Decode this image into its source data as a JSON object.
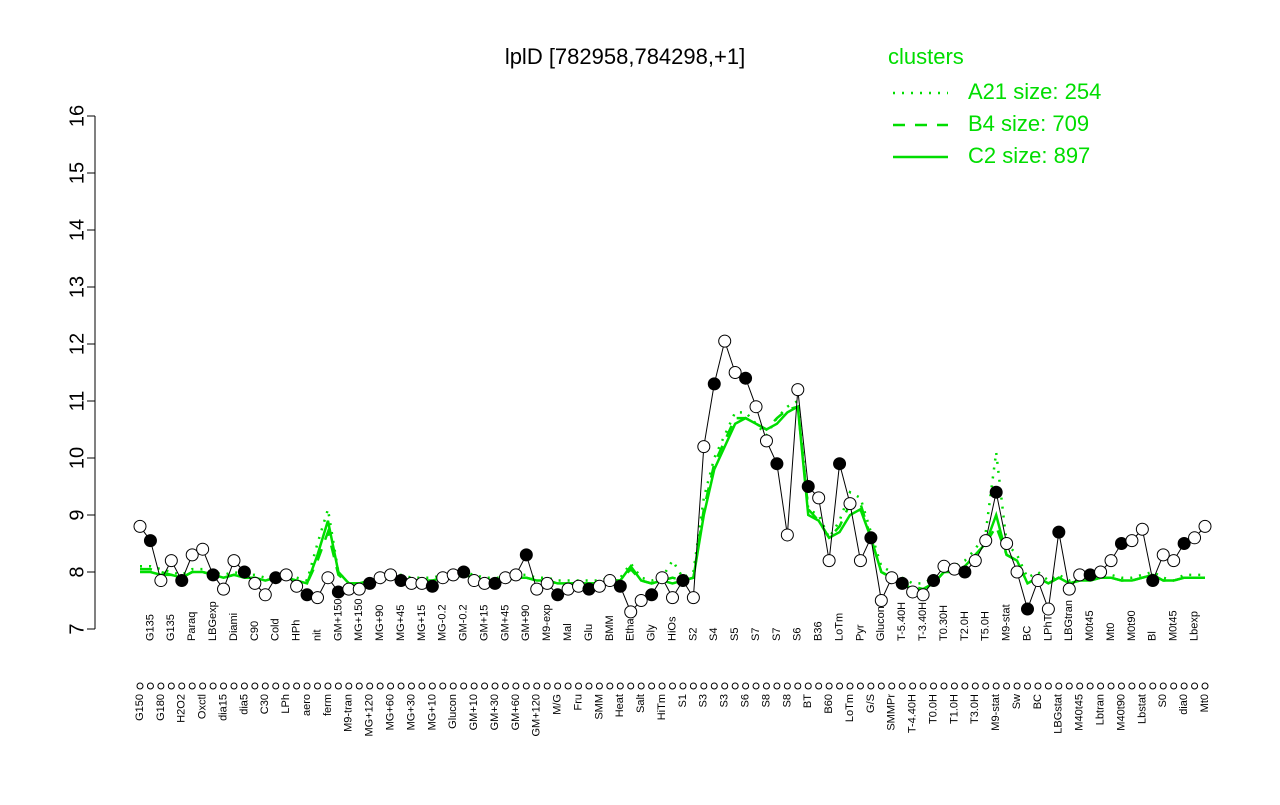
{
  "chart_data": {
    "type": "line",
    "title": "lplD [782958,784298,+1]",
    "legend_title": "clusters",
    "legend": "top-right",
    "ylim": [
      7,
      16
    ],
    "yticks": [
      7,
      8,
      9,
      10,
      11,
      12,
      13,
      14,
      15,
      16
    ],
    "categories": [
      "G150",
      "G135",
      "G180",
      "G135",
      "H2O2",
      "Paraq",
      "Oxctl",
      "LBGexp",
      "dia15",
      "Diami",
      "dia5",
      "C90",
      "C30",
      "Cold",
      "LPh",
      "HPh",
      "aero",
      "nit",
      "ferm",
      "GM+150",
      "M9-tran",
      "MG+150",
      "MG+120",
      "MG+90",
      "MG+60",
      "MG+45",
      "MG+30",
      "MG+15",
      "MG+10",
      "MG-0.2",
      "Glucon",
      "GM-0.2",
      "GM+10",
      "GM+15",
      "GM+30",
      "GM+45",
      "GM+60",
      "GM+90",
      "GM+120",
      "M9-exp",
      "M/G",
      "Mal",
      "Fru",
      "Glu",
      "SMM",
      "BMM",
      "Heat",
      "Etha",
      "Salt",
      "Gly",
      "HiTm",
      "HiOs",
      "S1",
      "S2",
      "S3",
      "S4",
      "S3",
      "S5",
      "S6",
      "S7",
      "S8",
      "S7",
      "S8",
      "S6",
      "BT",
      "B36",
      "B60",
      "LoTm",
      "LoTm",
      "Pyr",
      "G/S",
      "Glucon",
      "SMMPr",
      "T-5.40H",
      "T-4.40H",
      "T-3.40H",
      "T0.0H",
      "T0.30H",
      "T1.0H",
      "T2.0H",
      "T3.0H",
      "T5.0H",
      "M9-stat",
      "M9-stat",
      "Sw",
      "BC",
      "BC",
      "LPhT",
      "LBGstat",
      "LBGtran",
      "M40t45",
      "M0t45",
      "Lbtran",
      "Mt0",
      "M40t90",
      "M0t90",
      "Lbstat",
      "Bl",
      "S0",
      "M0t45",
      "dia0",
      "Lbexp",
      "Mt0"
    ],
    "values": [
      8.8,
      8.55,
      7.85,
      8.2,
      7.85,
      8.3,
      8.4,
      7.95,
      7.7,
      8.2,
      8.0,
      7.8,
      7.6,
      7.9,
      7.95,
      7.75,
      7.6,
      7.55,
      7.9,
      7.65,
      7.7,
      7.7,
      7.8,
      7.9,
      7.95,
      7.85,
      7.8,
      7.8,
      7.75,
      7.9,
      7.95,
      8.0,
      7.85,
      7.8,
      7.8,
      7.9,
      7.95,
      8.3,
      7.7,
      7.8,
      7.6,
      7.7,
      7.75,
      7.7,
      7.75,
      7.85,
      7.75,
      7.3,
      7.5,
      7.6,
      7.9,
      7.55,
      7.85,
      7.55,
      10.2,
      11.3,
      12.05,
      11.5,
      11.4,
      10.9,
      10.3,
      9.9,
      8.65,
      11.2,
      9.5,
      9.3,
      8.2,
      9.9,
      9.2,
      8.2,
      8.6,
      7.5,
      7.9,
      7.8,
      7.65,
      7.6,
      7.85,
      8.1,
      8.05,
      8.0,
      8.2,
      8.55,
      9.4,
      8.5,
      8.0,
      7.35,
      7.85,
      7.35,
      8.7,
      7.7,
      7.95,
      7.95,
      8.0,
      8.2,
      8.5,
      8.55,
      8.75,
      7.85,
      8.3,
      8.2,
      8.5,
      8.6,
      8.8
    ],
    "color": "#000000",
    "series": [
      {
        "name": "A21 size: 254",
        "color": "#00dd00",
        "dash": "dotted",
        "values": [
          8.1,
          8.1,
          8.05,
          8.0,
          7.95,
          8.05,
          8.05,
          8.0,
          7.95,
          8.0,
          7.95,
          7.95,
          7.9,
          7.95,
          7.95,
          7.9,
          7.85,
          8.5,
          9.1,
          8.0,
          7.8,
          7.8,
          7.85,
          7.9,
          7.95,
          7.95,
          7.9,
          7.9,
          7.9,
          7.95,
          7.95,
          8.0,
          7.95,
          7.9,
          7.9,
          7.9,
          7.95,
          7.95,
          7.9,
          7.9,
          7.85,
          7.85,
          7.85,
          7.85,
          7.85,
          7.9,
          7.9,
          8.15,
          7.9,
          7.85,
          7.9,
          8.2,
          7.9,
          8.0,
          9.3,
          10.0,
          10.4,
          10.8,
          10.8,
          10.6,
          10.4,
          10.7,
          10.9,
          11.0,
          9.1,
          9.0,
          8.6,
          8.9,
          9.4,
          9.3,
          8.7,
          8.1,
          8.0,
          7.9,
          7.8,
          7.8,
          7.9,
          8.1,
          8.1,
          8.2,
          8.4,
          8.7,
          10.1,
          8.5,
          8.3,
          7.9,
          8.0,
          7.85,
          7.95,
          7.85,
          7.9,
          7.9,
          7.95,
          7.95,
          7.9,
          7.9,
          7.95,
          8.0,
          7.9,
          7.85,
          7.95,
          7.95,
          7.95
        ]
      },
      {
        "name": "B4 size: 709",
        "color": "#00dd00",
        "dash": "dashed",
        "values": [
          8.05,
          8.05,
          8.0,
          7.95,
          7.9,
          8.0,
          8.0,
          7.95,
          7.9,
          7.95,
          7.9,
          7.9,
          7.85,
          7.9,
          7.9,
          7.85,
          7.8,
          8.2,
          8.7,
          7.95,
          7.8,
          7.8,
          7.85,
          7.85,
          7.9,
          7.9,
          7.85,
          7.85,
          7.85,
          7.9,
          7.9,
          7.95,
          7.9,
          7.85,
          7.85,
          7.85,
          7.9,
          7.9,
          7.85,
          7.85,
          7.8,
          7.8,
          7.8,
          7.8,
          7.8,
          7.85,
          7.85,
          8.05,
          7.85,
          7.8,
          7.85,
          7.9,
          7.85,
          7.9,
          9.1,
          9.9,
          10.3,
          10.7,
          10.7,
          10.6,
          10.5,
          10.7,
          10.85,
          10.9,
          9.1,
          8.9,
          8.6,
          8.8,
          9.2,
          9.2,
          8.6,
          8.0,
          7.9,
          7.8,
          7.75,
          7.7,
          7.8,
          8.0,
          8.0,
          8.1,
          8.3,
          8.5,
          8.8,
          8.3,
          8.2,
          7.8,
          7.9,
          7.8,
          7.9,
          7.8,
          7.85,
          7.85,
          7.9,
          7.9,
          7.85,
          7.85,
          7.9,
          7.95,
          7.85,
          7.85,
          7.9,
          7.9,
          7.9
        ]
      },
      {
        "name": "C2 size: 897",
        "color": "#00dd00",
        "dash": "solid",
        "values": [
          8.0,
          8.0,
          7.95,
          7.95,
          7.9,
          8.0,
          8.0,
          7.95,
          7.9,
          7.95,
          7.9,
          7.9,
          7.85,
          7.9,
          7.9,
          7.85,
          7.8,
          8.3,
          8.9,
          8.0,
          7.8,
          7.8,
          7.85,
          7.85,
          7.9,
          7.9,
          7.85,
          7.85,
          7.85,
          7.9,
          7.9,
          7.95,
          7.9,
          7.85,
          7.85,
          7.85,
          7.9,
          7.9,
          7.85,
          7.85,
          7.8,
          7.8,
          7.8,
          7.8,
          7.8,
          7.85,
          7.85,
          8.1,
          7.85,
          7.8,
          7.85,
          7.8,
          7.85,
          7.9,
          9.0,
          9.8,
          10.2,
          10.6,
          10.7,
          10.6,
          10.5,
          10.6,
          10.8,
          10.9,
          9.0,
          8.9,
          8.6,
          8.7,
          9.0,
          9.1,
          8.6,
          8.0,
          7.9,
          7.8,
          7.7,
          7.7,
          7.8,
          8.0,
          8.0,
          8.1,
          8.3,
          8.5,
          9.0,
          8.3,
          8.2,
          7.8,
          7.9,
          7.8,
          7.9,
          7.8,
          7.85,
          7.85,
          7.9,
          7.9,
          7.85,
          7.85,
          7.9,
          7.95,
          7.85,
          7.85,
          7.9,
          7.9,
          7.9
        ]
      }
    ]
  }
}
